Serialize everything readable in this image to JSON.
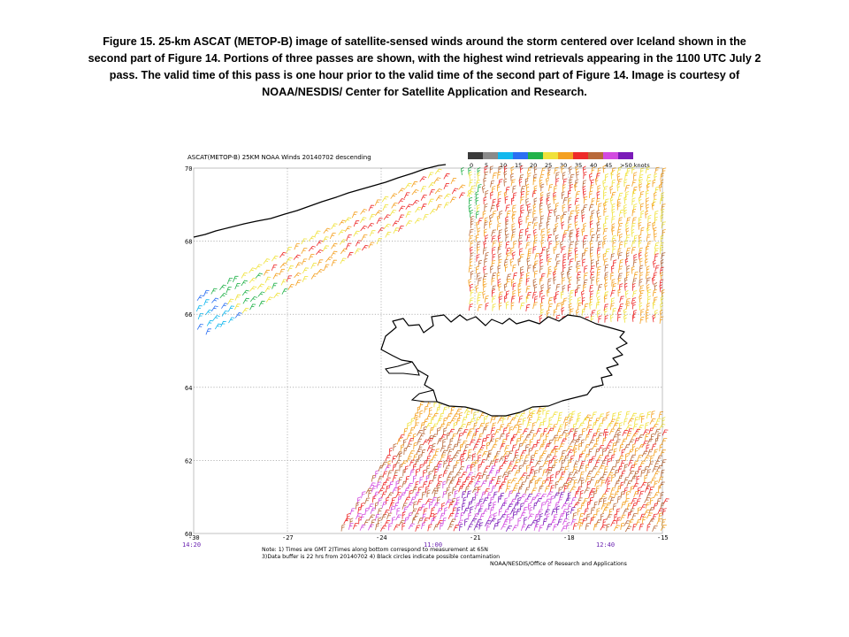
{
  "caption": {
    "line1": "Figure 15.  25-km ASCAT (METOP-B) image of satellite-sensed winds around the storm centered over Iceland shown in the",
    "line2": "second part of Figure 14.  Portions of three passes are shown, with the highest wind retrievals appearing in the 1100 UTC July 2",
    "line3": "pass.  The valid time of this pass is one hour prior to the valid time of the second part of Figure 14.  Image is courtesy of",
    "line4": "NOAA/NESDIS/ Center for Satellite Application and Research."
  },
  "map": {
    "title": "ASCAT(METOP-B) 25KM NOAA Winds 20140702 descending",
    "legend": {
      "bins": [
        {
          "label": "0",
          "color": "#3a3a3a"
        },
        {
          "label": "5",
          "color": "#8a8a8a"
        },
        {
          "label": "10",
          "color": "#12b8ee"
        },
        {
          "label": "15",
          "color": "#2b6ff2"
        },
        {
          "label": "20",
          "color": "#22b24a"
        },
        {
          "label": "25",
          "color": "#f0e23a"
        },
        {
          "label": "30",
          "color": "#f4a020"
        },
        {
          "label": "35",
          "color": "#ee2a2a"
        },
        {
          "label": "40",
          "color": "#b8693a"
        },
        {
          "label": "45",
          "color": "#d24ae0"
        },
        {
          "label": ">50 knots",
          "color": "#7a1ab8"
        }
      ]
    },
    "lat_labels": [
      "70",
      "68",
      "66",
      "64",
      "62",
      "60"
    ],
    "lon_labels": [
      "-30",
      "-27",
      "-24",
      "-21",
      "-18",
      "-15"
    ],
    "pass_times": [
      "14:20",
      "11:00",
      "12:40"
    ],
    "notes": {
      "line1": "Note: 1) Times are GMT 2)Times along bottom correspond to measurement at 65N",
      "line2": "3)Data buffer is 22 hrs from 20140702 4) Black circles indicate possible contamination",
      "credit": "NOAA/NESDIS/Office of Research and Applications"
    }
  }
}
